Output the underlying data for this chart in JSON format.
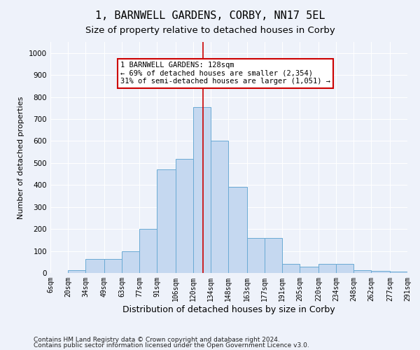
{
  "title": "1, BARNWELL GARDENS, CORBY, NN17 5EL",
  "subtitle": "Size of property relative to detached houses in Corby",
  "xlabel": "Distribution of detached houses by size in Corby",
  "ylabel": "Number of detached properties",
  "footnote1": "Contains HM Land Registry data © Crown copyright and database right 2024.",
  "footnote2": "Contains public sector information licensed under the Open Government Licence v3.0.",
  "annotation_line1": "1 BARNWELL GARDENS: 128sqm",
  "annotation_line2": "← 69% of detached houses are smaller (2,354)",
  "annotation_line3": "31% of semi-detached houses are larger (1,051) →",
  "bin_edges": [
    6,
    20,
    34,
    49,
    63,
    77,
    91,
    106,
    120,
    134,
    148,
    163,
    177,
    191,
    205,
    220,
    234,
    248,
    262,
    277,
    291
  ],
  "bar_heights": [
    0,
    13,
    65,
    65,
    100,
    200,
    470,
    520,
    755,
    600,
    390,
    160,
    160,
    40,
    28,
    42,
    42,
    13,
    8,
    5
  ],
  "bar_color": "#C5D8F0",
  "bar_edge_color": "#6AAAD4",
  "vline_x": 128,
  "vline_color": "#CC0000",
  "annotation_box_color": "#CC0000",
  "background_color": "#EEF2FA",
  "grid_color": "#FFFFFF",
  "ylim": [
    0,
    1050
  ],
  "yticks": [
    0,
    100,
    200,
    300,
    400,
    500,
    600,
    700,
    800,
    900,
    1000
  ],
  "tick_labels": [
    "6sqm",
    "20sqm",
    "34sqm",
    "49sqm",
    "63sqm",
    "77sqm",
    "91sqm",
    "106sqm",
    "120sqm",
    "134sqm",
    "148sqm",
    "163sqm",
    "177sqm",
    "191sqm",
    "205sqm",
    "220sqm",
    "234sqm",
    "248sqm",
    "262sqm",
    "277sqm",
    "291sqm"
  ],
  "title_fontsize": 11,
  "subtitle_fontsize": 9.5,
  "xlabel_fontsize": 9,
  "ylabel_fontsize": 8,
  "tick_fontsize": 7,
  "annotation_fontsize": 7.5,
  "footnote_fontsize": 6.5
}
